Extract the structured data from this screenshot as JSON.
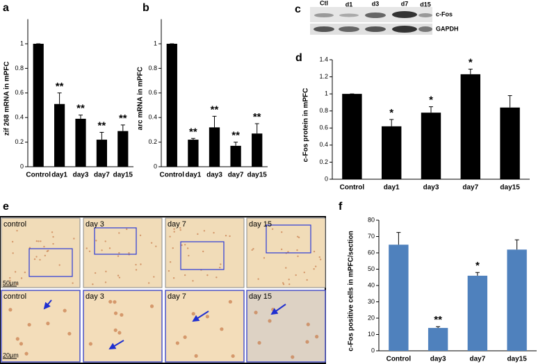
{
  "chart_data": [
    {
      "type": "bar",
      "panel": "a",
      "ylabel": "zif 268 mRNA in mPFC",
      "categories": [
        "Control",
        "day1",
        "day3",
        "day7",
        "day15"
      ],
      "values": [
        1,
        0.51,
        0.39,
        0.22,
        0.29
      ],
      "errors": [
        0,
        0.09,
        0.03,
        0.06,
        0.05
      ],
      "annotations": [
        null,
        "**",
        "**",
        "**",
        "**"
      ],
      "color": "#000000",
      "ylim": [
        0,
        1.2
      ],
      "yticks": [
        0,
        0.2,
        0.4,
        0.6,
        0.8,
        1
      ]
    },
    {
      "type": "bar",
      "panel": "b",
      "ylabel": "arc mRNA in mPFC",
      "categories": [
        "Control",
        "day1",
        "day3",
        "day7",
        "day15"
      ],
      "values": [
        1,
        0.22,
        0.32,
        0.17,
        0.27
      ],
      "errors": [
        0,
        0.01,
        0.09,
        0.03,
        0.08
      ],
      "annotations": [
        null,
        "**",
        "**",
        "**",
        "**"
      ],
      "color": "#000000",
      "ylim": [
        0,
        1.2
      ],
      "yticks": [
        0,
        0.2,
        0.4,
        0.6,
        0.8,
        1
      ]
    },
    {
      "type": "bar",
      "panel": "d",
      "ylabel": "c-Fos protein in mPFC",
      "categories": [
        "Control",
        "day1",
        "day3",
        "day7",
        "day15"
      ],
      "values": [
        1,
        0.62,
        0.78,
        1.23,
        0.84
      ],
      "errors": [
        0,
        0.08,
        0.07,
        0.06,
        0.14
      ],
      "annotations": [
        null,
        "*",
        "*",
        "*",
        null
      ],
      "color": "#000000",
      "ylim": [
        0,
        1.4
      ],
      "yticks": [
        0,
        0.2,
        0.4,
        0.6,
        0.8,
        1,
        1.2,
        1.4
      ]
    },
    {
      "type": "bar",
      "panel": "f",
      "ylabel": "c-Fos positive cells in mPFC/section",
      "categories": [
        "Control",
        "day3",
        "day7",
        "day15"
      ],
      "values": [
        65,
        14,
        46,
        62
      ],
      "errors": [
        7.5,
        0.8,
        2,
        6
      ],
      "annotations": [
        null,
        "**",
        "*",
        null
      ],
      "color": "#4f81bd",
      "ylim": [
        0,
        80
      ],
      "yticks": [
        0,
        10,
        20,
        30,
        40,
        50,
        60,
        70,
        80
      ]
    }
  ],
  "blot": {
    "panel": "c",
    "lanes": [
      "Ctl",
      "d1",
      "d3",
      "d7",
      "d15"
    ],
    "rows": [
      "c-Fos",
      "GAPDH"
    ]
  },
  "micrographs": {
    "panel": "e",
    "top": [
      "control",
      "day 3",
      "day 7",
      "day 15"
    ],
    "bottom": [
      "control",
      "day 3",
      "day 7",
      "day 15"
    ],
    "scale_top": "50μm",
    "scale_bottom": "20μm"
  }
}
